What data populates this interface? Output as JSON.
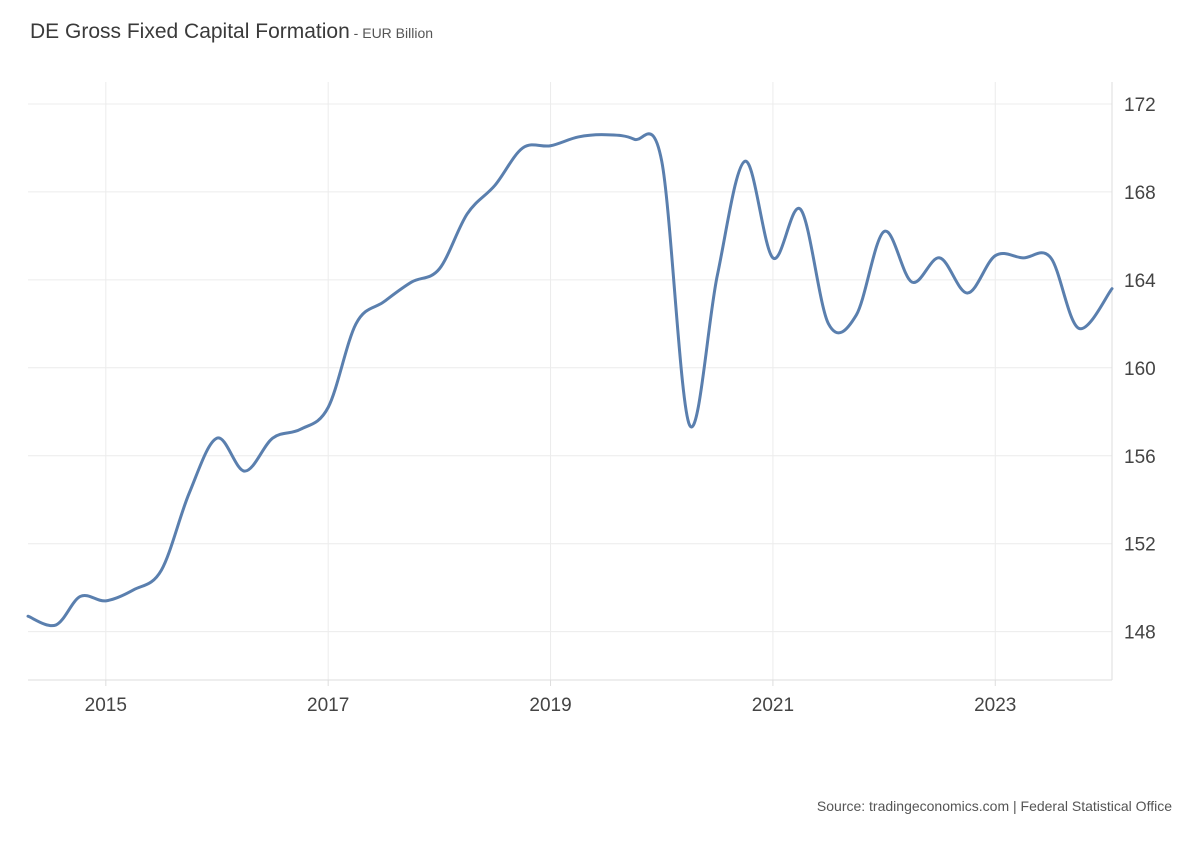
{
  "title": "DE Gross Fixed Capital Formation",
  "title_separator": " - ",
  "subtitle": "EUR Billion",
  "source": "Source: tradingeconomics.com | Federal Statistical Office",
  "colors": {
    "line": "#5a7fae",
    "grid": "#ececec",
    "axis": "#dddddd",
    "text": "#444444"
  },
  "chart_data": {
    "type": "line",
    "title": "DE Gross Fixed Capital Formation - EUR Billion",
    "xlabel": "",
    "ylabel": "",
    "y_axis_position": "right",
    "grid": true,
    "legend": "none",
    "xlim": [
      2014.3,
      2024.05
    ],
    "ylim": [
      145.8,
      173.0
    ],
    "x_ticks": [
      2015,
      2017,
      2019,
      2021,
      2023
    ],
    "x_tick_labels": [
      "2015",
      "2017",
      "2019",
      "2021",
      "2023"
    ],
    "y_ticks": [
      148,
      152,
      156,
      160,
      164,
      168,
      172
    ],
    "y_tick_labels": [
      "148",
      "152",
      "156",
      "160",
      "164",
      "168",
      "172"
    ],
    "series": [
      {
        "x": [
          2014.3,
          2014.55,
          2014.77,
          2015.0,
          2015.25,
          2015.5,
          2015.75,
          2016.0,
          2016.25,
          2016.5,
          2016.75,
          2017.0,
          2017.25,
          2017.5,
          2017.75,
          2018.0,
          2018.25,
          2018.5,
          2018.75,
          2019.0,
          2019.25,
          2019.5,
          2019.75,
          2020.0,
          2020.25,
          2020.5,
          2020.75,
          2021.0,
          2021.25,
          2021.5,
          2021.75,
          2022.0,
          2022.25,
          2022.5,
          2022.75,
          2023.0,
          2023.25,
          2023.5,
          2023.75,
          2024.05
        ],
        "values": [
          148.7,
          148.3,
          149.6,
          149.4,
          149.9,
          150.8,
          154.3,
          156.8,
          155.3,
          156.8,
          157.2,
          158.2,
          162.0,
          163.0,
          163.9,
          164.5,
          167.0,
          168.3,
          170.0,
          170.1,
          170.5,
          170.6,
          170.4,
          169.4,
          157.4,
          164.2,
          169.4,
          165.0,
          167.2,
          162.0,
          162.4,
          166.2,
          163.9,
          165.0,
          163.4,
          165.1,
          165.0,
          165.0,
          161.8,
          163.6
        ]
      }
    ]
  }
}
